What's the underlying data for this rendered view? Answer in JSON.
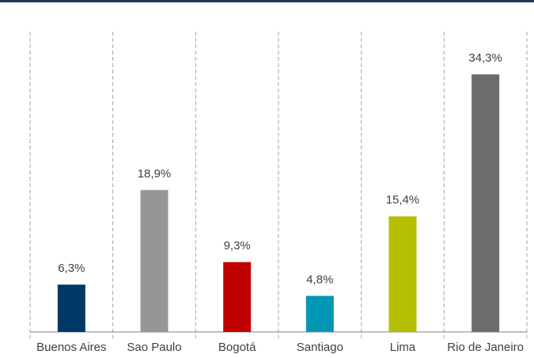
{
  "chart_data": {
    "type": "bar",
    "categories": [
      "Buenos Aires",
      "Sao Paulo",
      "Bogotá",
      "Santiago",
      "Lima",
      "Rio de Janeiro"
    ],
    "values": [
      6.3,
      18.9,
      9.3,
      4.8,
      15.4,
      34.3
    ],
    "value_labels": [
      "6,3%",
      "18,9%",
      "9,3%",
      "4,8%",
      "15,4%",
      "34,3%"
    ],
    "colors": [
      "#003865",
      "#969696",
      "#c00000",
      "#0097b5",
      "#b5be00",
      "#6b6d6b"
    ],
    "ylim": [
      0,
      40
    ]
  }
}
